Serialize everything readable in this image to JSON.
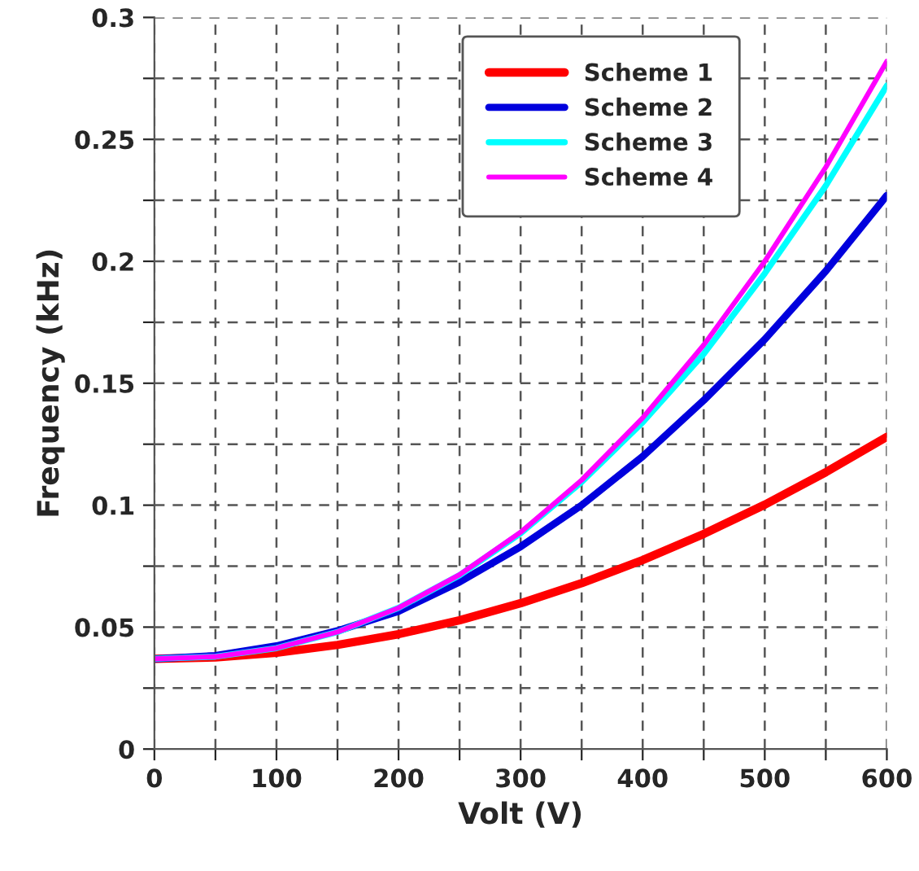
{
  "chart_data": {
    "type": "line",
    "xlabel": "Volt (V)",
    "ylabel": "Frequency (kHz)",
    "x": [
      0,
      50,
      100,
      150,
      200,
      250,
      300,
      350,
      400,
      450,
      500,
      550,
      600
    ],
    "series": [
      {
        "name": "Scheme 1",
        "color": "#ff0000",
        "values": [
          0.037,
          0.0376,
          0.0395,
          0.0427,
          0.0471,
          0.0528,
          0.0598,
          0.068,
          0.0775,
          0.0882,
          0.1002,
          0.1135,
          0.128
        ]
      },
      {
        "name": "Scheme 2",
        "color": "#0000dd",
        "values": [
          0.037,
          0.0383,
          0.0423,
          0.0485,
          0.0565,
          0.0685,
          0.083,
          0.1,
          0.12,
          0.143,
          0.168,
          0.196,
          0.227
        ]
      },
      {
        "name": "Scheme 3",
        "color": "#00ffff",
        "values": [
          0.037,
          0.0379,
          0.0414,
          0.048,
          0.0579,
          0.0713,
          0.0885,
          0.1095,
          0.134,
          0.162,
          0.195,
          0.231,
          0.272
        ]
      },
      {
        "name": "Scheme 4",
        "color": "#ff00ff",
        "values": [
          0.037,
          0.0379,
          0.0414,
          0.048,
          0.0579,
          0.0715,
          0.0889,
          0.1103,
          0.1358,
          0.1657,
          0.2,
          0.2386,
          0.282
        ]
      }
    ],
    "xlim": [
      0,
      600
    ],
    "ylim": [
      0,
      0.3
    ],
    "xticks": [
      0,
      {
        "value": 50,
        "label": null
      },
      100,
      {
        "value": 150,
        "label": null
      },
      200,
      {
        "value": 250,
        "label": null
      },
      300,
      {
        "value": 350,
        "label": null
      },
      400,
      {
        "value": 450,
        "label": null
      },
      500,
      {
        "value": 550,
        "label": null
      },
      600
    ],
    "yticks": [
      0,
      {
        "value": 0.025,
        "label": null
      },
      0.05,
      {
        "value": 0.075,
        "label": null
      },
      0.1,
      {
        "value": 0.125,
        "label": null
      },
      0.15,
      {
        "value": 0.175,
        "label": null
      },
      0.2,
      {
        "value": 0.225,
        "label": null
      },
      0.25,
      {
        "value": 0.275,
        "label": null
      },
      0.3
    ],
    "grid": true,
    "legend": "top right",
    "line_style": "solid",
    "marker": "none"
  }
}
